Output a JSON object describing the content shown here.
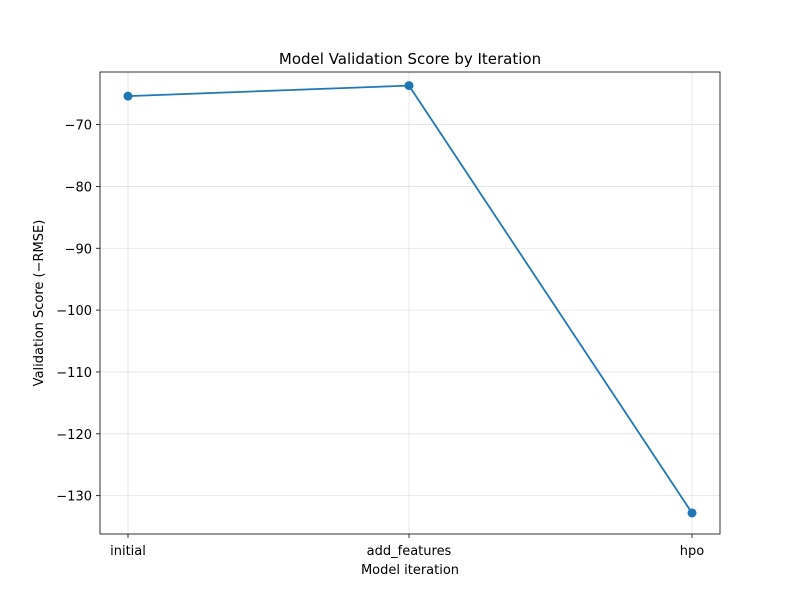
{
  "chart_data": {
    "type": "line",
    "title": "Model Validation Score by Iteration",
    "xlabel": "Model iteration",
    "ylabel": "Validation Score (−RMSE)",
    "categories": [
      "initial",
      "add_features",
      "hpo"
    ],
    "values": [
      -65.4,
      -63.7,
      -132.8
    ],
    "ylim": [
      -136.2,
      -61.5
    ],
    "yticks": [
      -70,
      -80,
      -90,
      -100,
      -110,
      -120,
      -130
    ],
    "ytick_labels": [
      "−70",
      "−80",
      "−90",
      "−100",
      "−110",
      "−120",
      "−130"
    ],
    "grid": true,
    "color": "#1f77b4",
    "marker": "circle"
  }
}
